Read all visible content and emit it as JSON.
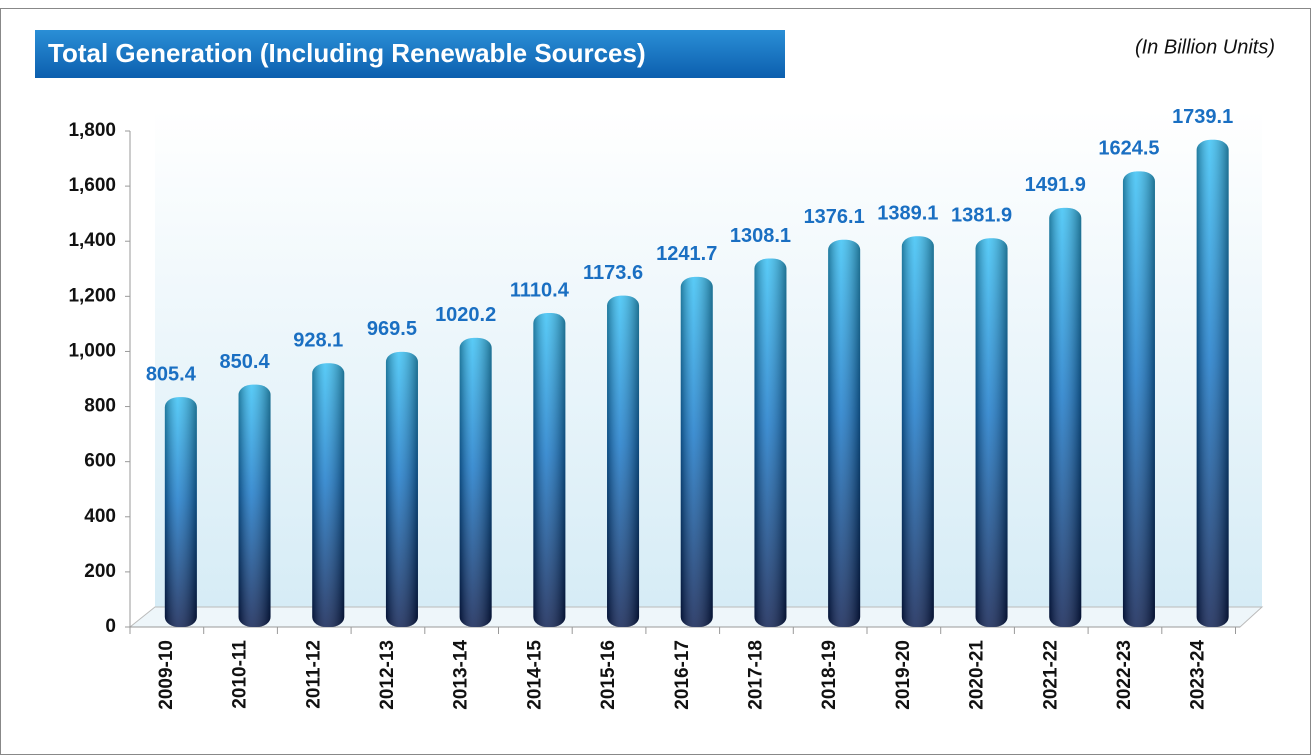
{
  "chart_data": {
    "type": "bar",
    "title": "Total Generation (Including Renewable Sources)",
    "subtitle": "(In Billion Units)",
    "categories": [
      "2009-10",
      "2010-11",
      "2011-12",
      "2012-13",
      "2013-14",
      "2014-15",
      "2015-16",
      "2016-17",
      "2017-18",
      "2018-19",
      "2019-20",
      "2020-21",
      "2021-22",
      "2022-23",
      "2023-24"
    ],
    "values": [
      805.4,
      850.4,
      928.1,
      969.5,
      1020.2,
      1110.4,
      1173.6,
      1241.7,
      1308.1,
      1376.1,
      1389.1,
      1381.9,
      1491.9,
      1624.5,
      1739.1
    ],
    "color": "#1a9ee0",
    "ylim": [
      0,
      1800
    ],
    "yticks": [
      0,
      200,
      400,
      600,
      800,
      {
        "value": 1000,
        "label": "1,000"
      },
      {
        "value": 1200,
        "label": "1,200"
      },
      {
        "value": 1400,
        "label": "1,400"
      },
      {
        "value": 1600,
        "label": "1,600"
      },
      {
        "value": 1800,
        "label": "1,800"
      }
    ],
    "grid": false
  }
}
